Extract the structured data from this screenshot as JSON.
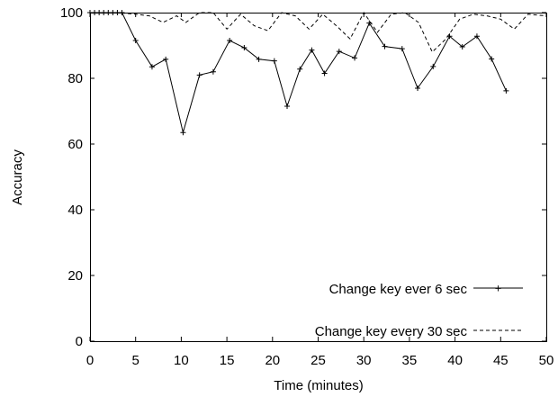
{
  "chart_data": {
    "type": "line",
    "xlabel": "Time (minutes)",
    "ylabel": "Accuracy",
    "xlim": [
      0,
      50
    ],
    "ylim": [
      0,
      100
    ],
    "xticks": [
      "0",
      "5",
      "10",
      "15",
      "20",
      "25",
      "30",
      "35",
      "40",
      "45",
      "50"
    ],
    "yticks": [
      "0",
      "20",
      "40",
      "60",
      "80",
      "100"
    ],
    "grid": false,
    "legend_position": "bottom-right",
    "series": [
      {
        "name": "Change key ever 6 sec",
        "style": "solid-with-plus-markers",
        "color": "#000000",
        "x": [
          0.0,
          0.5,
          1.0,
          1.5,
          2.0,
          2.5,
          3.0,
          3.5,
          5.0,
          6.8,
          8.3,
          10.2,
          12.0,
          13.5,
          15.3,
          16.9,
          18.5,
          20.2,
          21.6,
          23.0,
          24.3,
          25.7,
          27.3,
          29.0,
          30.6,
          32.3,
          34.2,
          35.9,
          37.6,
          39.4,
          40.8,
          42.4,
          44.0,
          45.6
        ],
        "y": [
          100,
          100,
          100,
          100,
          100,
          100,
          100,
          100,
          91.5,
          83.5,
          85.8,
          63.5,
          81.0,
          82.0,
          91.5,
          89.3,
          85.8,
          85.3,
          71.5,
          82.8,
          88.6,
          81.5,
          88.2,
          86.2,
          96.8,
          89.7,
          89.0,
          77.0,
          83.6,
          92.8,
          89.6,
          92.8,
          85.9,
          76.2
        ]
      },
      {
        "name": "Change key every 30 sec",
        "style": "dashed",
        "color": "#000000",
        "x": [
          0,
          3,
          5,
          6.5,
          8,
          9.5,
          10.5,
          12,
          13.5,
          15,
          16.5,
          18,
          19.5,
          21,
          22.5,
          24,
          25.5,
          27,
          28.5,
          30,
          31.5,
          33,
          34.5,
          36,
          37.5,
          39,
          40.5,
          42,
          43.5,
          45,
          46.5,
          48,
          50
        ],
        "y": [
          100,
          100,
          99.5,
          99,
          97,
          99,
          97,
          100,
          100,
          95,
          99.5,
          96,
          94.5,
          100,
          99,
          95,
          99.5,
          96,
          92,
          100,
          94,
          99.5,
          100,
          97,
          88,
          92,
          98,
          99.5,
          99,
          98,
          95,
          99.5,
          99
        ]
      }
    ]
  }
}
